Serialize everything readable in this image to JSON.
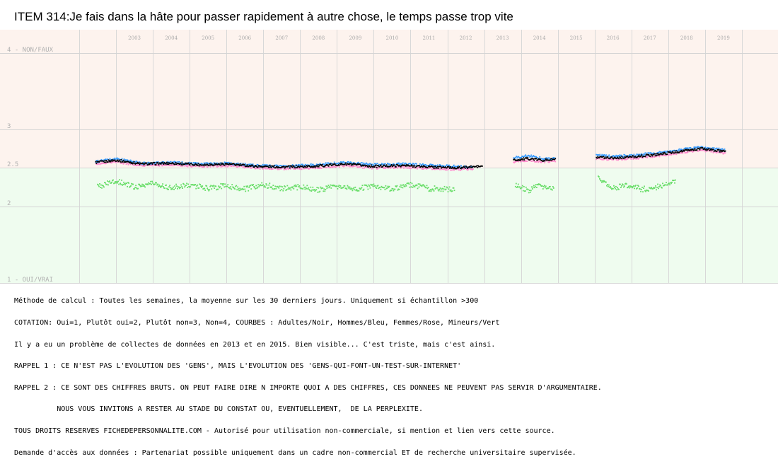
{
  "chart_data": {
    "type": "scatter",
    "title": "ITEM 314:Je fais dans la hâte pour passer rapidement à autre chose, le temps passe trop vite",
    "y_tick_labels": [
      {
        "value": 4,
        "label": "4 - NON/FAUX"
      },
      {
        "value": 3,
        "label": "3"
      },
      {
        "value": 2.5,
        "label": "2.5"
      },
      {
        "value": 2,
        "label": "2"
      },
      {
        "value": 1,
        "label": "1 - OUI/VRAI"
      }
    ],
    "ylim": [
      1,
      4.3
    ],
    "years": [
      "2003",
      "2004",
      "2005",
      "2006",
      "2007",
      "2008",
      "2009",
      "2010",
      "2011",
      "2012",
      "2013",
      "2014",
      "2015",
      "2016",
      "2017",
      "2018",
      "2019"
    ],
    "grid": true,
    "background_bands": [
      {
        "from": 2.5,
        "to": 4.3,
        "color": "#fdf3ee"
      },
      {
        "from": 1,
        "to": 2.5,
        "color": "#effcef"
      }
    ],
    "series": [
      {
        "name": "Adultes",
        "color": "#000000",
        "segments": [
          {
            "from": 2002.45,
            "to": 2012.95,
            "pts": [
              [
                2002.45,
                2.57
              ],
              [
                2003.0,
                2.6
              ],
              [
                2003.7,
                2.55
              ],
              [
                2004.5,
                2.56
              ],
              [
                2005.3,
                2.54
              ],
              [
                2006.0,
                2.55
              ],
              [
                2006.8,
                2.52
              ],
              [
                2007.6,
                2.51
              ],
              [
                2008.4,
                2.52
              ],
              [
                2009.2,
                2.55
              ],
              [
                2010.0,
                2.52
              ],
              [
                2010.8,
                2.53
              ],
              [
                2011.6,
                2.51
              ],
              [
                2012.3,
                2.5
              ],
              [
                2012.95,
                2.52
              ]
            ]
          },
          {
            "from": 2013.8,
            "to": 2014.95,
            "pts": [
              [
                2013.8,
                2.6
              ],
              [
                2014.2,
                2.62
              ],
              [
                2014.6,
                2.6
              ],
              [
                2014.95,
                2.61
              ]
            ]
          },
          {
            "from": 2016.05,
            "to": 2019.55,
            "pts": [
              [
                2016.05,
                2.64
              ],
              [
                2016.6,
                2.63
              ],
              [
                2017.2,
                2.65
              ],
              [
                2017.8,
                2.68
              ],
              [
                2018.4,
                2.72
              ],
              [
                2018.9,
                2.75
              ],
              [
                2019.55,
                2.71
              ]
            ]
          }
        ]
      },
      {
        "name": "Hommes",
        "color": "#3399ff",
        "segments": [
          {
            "from": 2002.45,
            "to": 2012.7,
            "pts": [
              [
                2002.45,
                2.58
              ],
              [
                2003.0,
                2.62
              ],
              [
                2003.7,
                2.56
              ],
              [
                2004.5,
                2.57
              ],
              [
                2005.3,
                2.55
              ],
              [
                2006.0,
                2.56
              ],
              [
                2006.8,
                2.53
              ],
              [
                2007.6,
                2.52
              ],
              [
                2008.4,
                2.54
              ],
              [
                2009.2,
                2.57
              ],
              [
                2010.0,
                2.54
              ],
              [
                2010.8,
                2.55
              ],
              [
                2011.6,
                2.53
              ],
              [
                2012.3,
                2.52
              ],
              [
                2012.7,
                2.51
              ]
            ]
          },
          {
            "from": 2013.8,
            "to": 2014.95,
            "pts": [
              [
                2013.8,
                2.63
              ],
              [
                2014.2,
                2.66
              ],
              [
                2014.6,
                2.62
              ],
              [
                2014.95,
                2.62
              ]
            ]
          },
          {
            "from": 2016.05,
            "to": 2019.55,
            "pts": [
              [
                2016.05,
                2.66
              ],
              [
                2016.6,
                2.65
              ],
              [
                2017.2,
                2.67
              ],
              [
                2017.8,
                2.7
              ],
              [
                2018.4,
                2.74
              ],
              [
                2018.9,
                2.77
              ],
              [
                2019.55,
                2.73
              ]
            ]
          }
        ]
      },
      {
        "name": "Femmes",
        "color": "#ff88cc",
        "segments": [
          {
            "from": 2002.45,
            "to": 2012.7,
            "pts": [
              [
                2002.45,
                2.55
              ],
              [
                2003.0,
                2.58
              ],
              [
                2003.7,
                2.53
              ],
              [
                2004.5,
                2.54
              ],
              [
                2005.3,
                2.52
              ],
              [
                2006.0,
                2.53
              ],
              [
                2006.8,
                2.5
              ],
              [
                2007.6,
                2.49
              ],
              [
                2008.4,
                2.5
              ],
              [
                2009.2,
                2.53
              ],
              [
                2010.0,
                2.5
              ],
              [
                2010.8,
                2.51
              ],
              [
                2011.6,
                2.49
              ],
              [
                2012.3,
                2.48
              ],
              [
                2012.7,
                2.49
              ]
            ]
          },
          {
            "from": 2013.8,
            "to": 2014.95,
            "pts": [
              [
                2013.8,
                2.58
              ],
              [
                2014.2,
                2.6
              ],
              [
                2014.6,
                2.58
              ],
              [
                2014.95,
                2.59
              ]
            ]
          },
          {
            "from": 2016.05,
            "to": 2019.55,
            "pts": [
              [
                2016.05,
                2.62
              ],
              [
                2016.6,
                2.61
              ],
              [
                2017.2,
                2.63
              ],
              [
                2017.8,
                2.66
              ],
              [
                2018.4,
                2.7
              ],
              [
                2018.9,
                2.73
              ],
              [
                2019.55,
                2.69
              ]
            ]
          }
        ]
      },
      {
        "name": "Mineurs",
        "color": "#66dd66",
        "segments": [
          {
            "from": 2002.5,
            "to": 2012.2,
            "pts": [
              [
                2002.5,
                2.25
              ],
              [
                2003.0,
                2.33
              ],
              [
                2003.5,
                2.25
              ],
              [
                2004.0,
                2.3
              ],
              [
                2004.5,
                2.24
              ],
              [
                2005.0,
                2.28
              ],
              [
                2005.5,
                2.23
              ],
              [
                2006.0,
                2.27
              ],
              [
                2006.5,
                2.22
              ],
              [
                2007.0,
                2.28
              ],
              [
                2007.5,
                2.23
              ],
              [
                2008.0,
                2.25
              ],
              [
                2008.5,
                2.21
              ],
              [
                2009.0,
                2.26
              ],
              [
                2009.5,
                2.22
              ],
              [
                2010.0,
                2.27
              ],
              [
                2010.5,
                2.22
              ],
              [
                2011.0,
                2.28
              ],
              [
                2011.5,
                2.23
              ],
              [
                2012.2,
                2.22
              ]
            ]
          },
          {
            "from": 2013.85,
            "to": 2014.9,
            "pts": [
              [
                2013.85,
                2.28
              ],
              [
                2014.2,
                2.2
              ],
              [
                2014.5,
                2.27
              ],
              [
                2014.9,
                2.22
              ]
            ]
          },
          {
            "from": 2016.1,
            "to": 2018.2,
            "pts": [
              [
                2016.1,
                2.38
              ],
              [
                2016.5,
                2.24
              ],
              [
                2016.9,
                2.27
              ],
              [
                2017.3,
                2.22
              ],
              [
                2017.7,
                2.25
              ],
              [
                2018.2,
                2.33
              ]
            ]
          }
        ]
      }
    ]
  },
  "notes": [
    "Méthode de calcul : Toutes les semaines, la moyenne sur les 30 derniers jours. Uniquement si échantillon >300",
    "COTATION: Oui=1, Plutôt oui=2, Plutôt non=3, Non=4, COURBES : Adultes/Noir, Hommes/Bleu, Femmes/Rose, Mineurs/Vert",
    "Il y a eu un problème de collectes de données en 2013 et en 2015. Bien visible... C'est triste, mais c'est ainsi.",
    "RAPPEL 1 : CE N'EST PAS L'EVOLUTION DES 'GENS', MAIS L'EVOLUTION DES 'GENS-QUI-FONT-UN-TEST-SUR-INTERNET'",
    "RAPPEL 2 : CE SONT DES CHIFFRES BRUTS. ON PEUT FAIRE DIRE N IMPORTE QUOI A DES CHIFFRES, CES DONNEES NE PEUVENT PAS SERVIR D'ARGUMENTAIRE.",
    "          NOUS VOUS INVITONS A RESTER AU STADE DU CONSTAT OU, EVENTUELLEMENT,  DE LA PERPLEXITE.",
    "TOUS DROITS RESERVES FICHEDEPERSONNALITE.COM - Autorisé pour utilisation non-commerciale, si mention et lien vers cette source.",
    "Demande d'accès aux données : Partenariat possible uniquement dans un cadre non-commercial ET de recherche universitaire supervisée."
  ]
}
